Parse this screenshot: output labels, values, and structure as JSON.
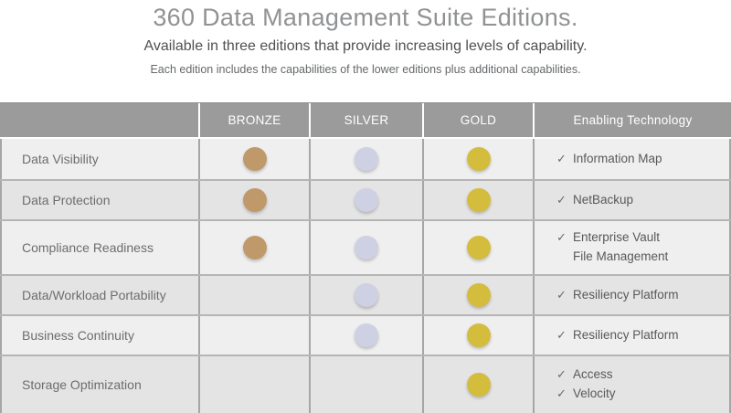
{
  "header": {
    "title": "360 Data Management Suite Editions.",
    "subtitle": "Available in three editions that provide increasing levels of capability.",
    "note": "Each edition includes the capabilities of the lower editions plus additional capabilities."
  },
  "table": {
    "columns": [
      "",
      "BRONZE",
      "SILVER",
      "GOLD",
      "Enabling Technology"
    ],
    "check_glyph": "✓",
    "colors": {
      "header_bg": "#9b9b9b",
      "row_light": "#efefef",
      "row_dark": "#e4e4e4",
      "bronze": "#c0996a",
      "silver": "#ced1e4",
      "gold": "#d4bc3c"
    },
    "rows": [
      {
        "capability": "Data Visibility",
        "bronze": true,
        "silver": true,
        "gold": true,
        "technologies": [
          {
            "check": true,
            "label": "Information Map"
          }
        ]
      },
      {
        "capability": "Data Protection",
        "bronze": true,
        "silver": true,
        "gold": true,
        "technologies": [
          {
            "check": true,
            "label": "NetBackup"
          }
        ]
      },
      {
        "capability": "Compliance Readiness",
        "bronze": true,
        "silver": true,
        "gold": true,
        "technologies": [
          {
            "check": true,
            "label": "Enterprise Vault"
          },
          {
            "check": false,
            "label": "File Management"
          }
        ]
      },
      {
        "capability": "Data/Workload Portability",
        "bronze": false,
        "silver": true,
        "gold": true,
        "technologies": [
          {
            "check": true,
            "label": "Resiliency Platform"
          }
        ]
      },
      {
        "capability": "Business Continuity",
        "bronze": false,
        "silver": true,
        "gold": true,
        "technologies": [
          {
            "check": true,
            "label": "Resiliency Platform"
          }
        ]
      },
      {
        "capability": "Storage Optimization",
        "bronze": false,
        "silver": false,
        "gold": true,
        "technologies": [
          {
            "check": true,
            "label": "Access"
          },
          {
            "check": true,
            "label": "Velocity"
          }
        ]
      }
    ]
  }
}
